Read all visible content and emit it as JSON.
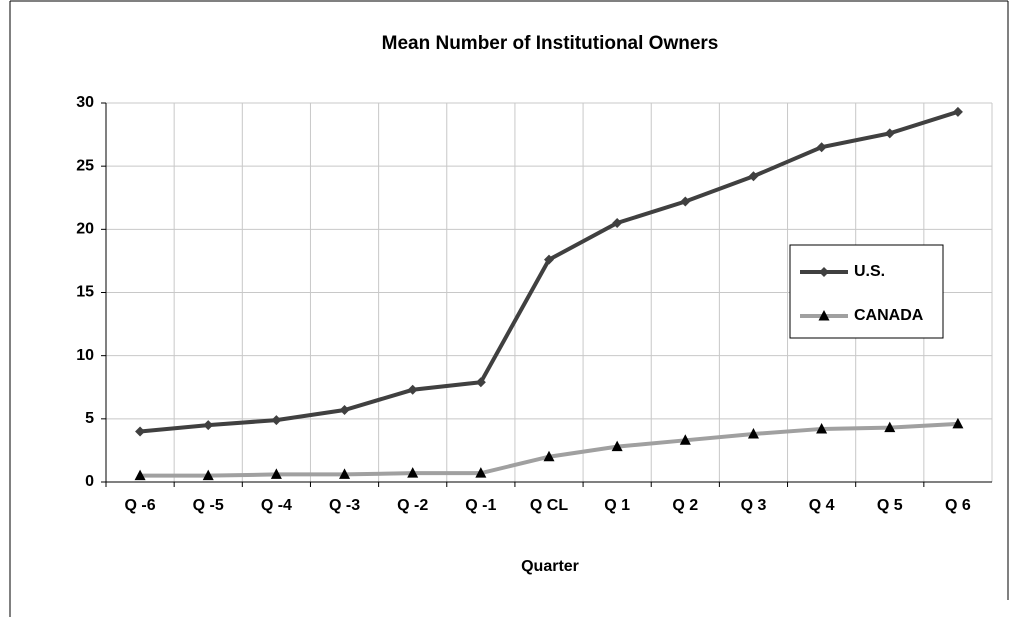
{
  "chart_data": {
    "type": "line",
    "title": "Mean Number of Institutional Owners",
    "x_label": "Quarter",
    "categories": [
      "Q -6",
      "Q -5",
      "Q -4",
      "Q -3",
      "Q -2",
      "Q -1",
      "Q CL",
      "Q 1",
      "Q 2",
      "Q 3",
      "Q 4",
      "Q 5",
      "Q 6"
    ],
    "series": [
      {
        "name": "U.S.",
        "color": "#404040",
        "marker": "diamond",
        "values": [
          4.0,
          4.5,
          4.9,
          5.7,
          7.3,
          7.9,
          17.6,
          20.5,
          22.2,
          24.2,
          26.5,
          27.6,
          29.3
        ]
      },
      {
        "name": "CANADA",
        "color": "#a0a0a0",
        "marker": "triangle",
        "values": [
          0.5,
          0.5,
          0.6,
          0.6,
          0.7,
          0.7,
          2.0,
          2.8,
          3.3,
          3.8,
          4.2,
          4.3,
          4.6
        ]
      }
    ],
    "ylim": [
      0,
      30
    ],
    "yticks": [
      0,
      5,
      10,
      15,
      20,
      25,
      30
    ],
    "grid": true,
    "legend": "right"
  }
}
